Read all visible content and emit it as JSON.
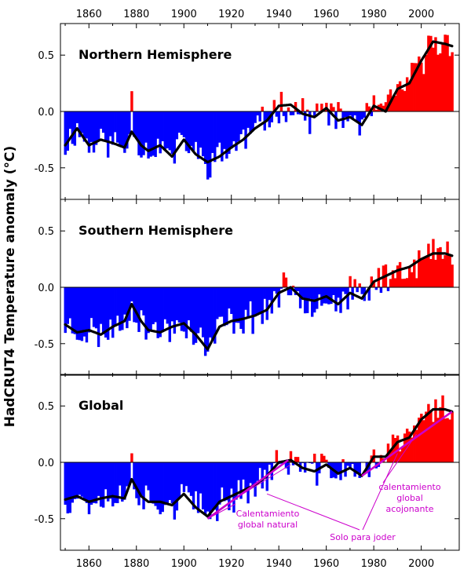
{
  "chart_data": {
    "type": "bar",
    "ylabel": "HadCRUT4 Temperature anomaly (°C)",
    "xlim": [
      1848,
      2016
    ],
    "x_ticks": [
      1860,
      1880,
      1900,
      1920,
      1940,
      1960,
      1980,
      2000
    ],
    "x_tick_labels": [
      "1860",
      "1880",
      "1900",
      "1920",
      "1940",
      "1960",
      "1980",
      "2000"
    ],
    "ylim": [
      -0.78,
      0.78
    ],
    "y_ticks": [
      0.5,
      0.0,
      -0.5
    ],
    "y_tick_labels": [
      "0.5",
      "0.0",
      "-0.5"
    ],
    "colors": {
      "positive": "#ff0000",
      "negative": "#0000ff",
      "smooth": "#000000",
      "annotation": "#cc00cc"
    },
    "smooth_anchors": {
      "northern": [
        [
          1850,
          -0.3
        ],
        [
          1855,
          -0.15
        ],
        [
          1860,
          -0.3
        ],
        [
          1865,
          -0.25
        ],
        [
          1870,
          -0.28
        ],
        [
          1875,
          -0.32
        ],
        [
          1878,
          -0.18
        ],
        [
          1882,
          -0.3
        ],
        [
          1885,
          -0.35
        ],
        [
          1890,
          -0.3
        ],
        [
          1895,
          -0.4
        ],
        [
          1900,
          -0.25
        ],
        [
          1905,
          -0.38
        ],
        [
          1910,
          -0.45
        ],
        [
          1915,
          -0.4
        ],
        [
          1920,
          -0.32
        ],
        [
          1925,
          -0.25
        ],
        [
          1930,
          -0.15
        ],
        [
          1935,
          -0.08
        ],
        [
          1940,
          0.05
        ],
        [
          1945,
          0.06
        ],
        [
          1950,
          -0.02
        ],
        [
          1955,
          -0.05
        ],
        [
          1960,
          0.03
        ],
        [
          1965,
          -0.08
        ],
        [
          1970,
          -0.05
        ],
        [
          1975,
          -0.12
        ],
        [
          1980,
          0.05
        ],
        [
          1985,
          0.0
        ],
        [
          1990,
          0.2
        ],
        [
          1995,
          0.25
        ],
        [
          2000,
          0.45
        ],
        [
          2005,
          0.62
        ],
        [
          2010,
          0.6
        ],
        [
          2013,
          0.58
        ]
      ],
      "southern": [
        [
          1850,
          -0.33
        ],
        [
          1855,
          -0.4
        ],
        [
          1860,
          -0.38
        ],
        [
          1865,
          -0.42
        ],
        [
          1870,
          -0.35
        ],
        [
          1875,
          -0.3
        ],
        [
          1878,
          -0.15
        ],
        [
          1882,
          -0.3
        ],
        [
          1885,
          -0.38
        ],
        [
          1890,
          -0.4
        ],
        [
          1895,
          -0.35
        ],
        [
          1900,
          -0.32
        ],
        [
          1905,
          -0.42
        ],
        [
          1910,
          -0.55
        ],
        [
          1915,
          -0.35
        ],
        [
          1920,
          -0.3
        ],
        [
          1925,
          -0.28
        ],
        [
          1930,
          -0.25
        ],
        [
          1935,
          -0.2
        ],
        [
          1940,
          -0.05
        ],
        [
          1945,
          0.0
        ],
        [
          1950,
          -0.1
        ],
        [
          1955,
          -0.12
        ],
        [
          1960,
          -0.08
        ],
        [
          1965,
          -0.15
        ],
        [
          1970,
          -0.05
        ],
        [
          1975,
          -0.1
        ],
        [
          1980,
          0.05
        ],
        [
          1985,
          0.1
        ],
        [
          1990,
          0.15
        ],
        [
          1995,
          0.18
        ],
        [
          2000,
          0.25
        ],
        [
          2005,
          0.3
        ],
        [
          2010,
          0.3
        ],
        [
          2013,
          0.28
        ]
      ],
      "global": [
        [
          1850,
          -0.33
        ],
        [
          1855,
          -0.3
        ],
        [
          1860,
          -0.35
        ],
        [
          1865,
          -0.32
        ],
        [
          1870,
          -0.3
        ],
        [
          1875,
          -0.32
        ],
        [
          1878,
          -0.15
        ],
        [
          1882,
          -0.3
        ],
        [
          1885,
          -0.35
        ],
        [
          1890,
          -0.35
        ],
        [
          1895,
          -0.38
        ],
        [
          1900,
          -0.28
        ],
        [
          1905,
          -0.4
        ],
        [
          1910,
          -0.48
        ],
        [
          1915,
          -0.35
        ],
        [
          1920,
          -0.3
        ],
        [
          1925,
          -0.25
        ],
        [
          1930,
          -0.2
        ],
        [
          1935,
          -0.12
        ],
        [
          1940,
          0.0
        ],
        [
          1945,
          0.02
        ],
        [
          1950,
          -0.05
        ],
        [
          1955,
          -0.08
        ],
        [
          1960,
          -0.02
        ],
        [
          1965,
          -0.1
        ],
        [
          1970,
          -0.05
        ],
        [
          1975,
          -0.12
        ],
        [
          1980,
          0.05
        ],
        [
          1985,
          0.05
        ],
        [
          1990,
          0.18
        ],
        [
          1995,
          0.22
        ],
        [
          2000,
          0.38
        ],
        [
          2005,
          0.47
        ],
        [
          2010,
          0.47
        ],
        [
          2013,
          0.45
        ]
      ]
    },
    "panels": [
      {
        "key": "northern",
        "title": "Northern Hemisphere",
        "noise_seed": 11
      },
      {
        "key": "southern",
        "title": "Southern Hemisphere",
        "noise_seed": 23
      },
      {
        "key": "global",
        "title": "Global",
        "noise_seed": 37
      }
    ],
    "annotations": {
      "trend_lines": [
        {
          "name": "natural-warming-trend",
          "from": [
            1910,
            -0.5
          ],
          "to": [
            1944,
            0.02
          ]
        },
        {
          "name": "accelerated-warming-trend",
          "from": [
            1975,
            -0.12
          ],
          "to": [
            2013,
            0.45
          ]
        }
      ],
      "labels": [
        {
          "name": "natural-warming-label",
          "lines": [
            "Calentamiento",
            "global  natural"
          ]
        },
        {
          "name": "accelerated-warming-label",
          "lines": [
            "calentamiento",
            "global",
            "acojonante"
          ]
        },
        {
          "name": "joke-label",
          "lines": [
            "Solo para joder"
          ]
        }
      ]
    }
  }
}
